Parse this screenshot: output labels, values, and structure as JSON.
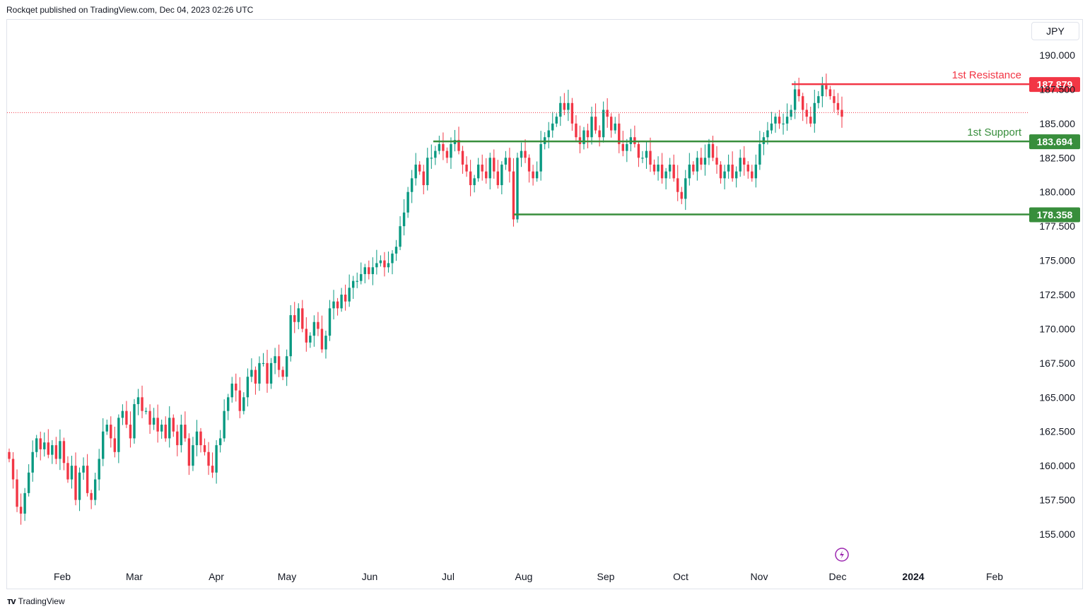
{
  "header": {
    "published": "Rockqet published on TradingView.com, Dec 04, 2023 02:26 UTC"
  },
  "currency": "JPY",
  "footer": {
    "brand": "TradingView"
  },
  "colors": {
    "up": "#089981",
    "down": "#f23645",
    "resistance": "#f23645",
    "support": "#388e3c",
    "grid_dotted": "#f23645"
  },
  "chart_data": {
    "type": "candlestick",
    "title": "",
    "xlabel": "",
    "ylabel": "",
    "ylim": [
      152.5,
      192.0
    ],
    "y_ticks": [
      "190.000",
      "187.500",
      "185.000",
      "182.500",
      "180.000",
      "177.500",
      "175.000",
      "172.500",
      "170.000",
      "167.500",
      "165.000",
      "162.500",
      "160.000",
      "157.500",
      "155.000"
    ],
    "x_ticks": [
      "Feb",
      "Mar",
      "Apr",
      "May",
      "Jun",
      "Jul",
      "Aug",
      "Sep",
      "Oct",
      "Nov",
      "Dec",
      "2024",
      "Feb"
    ],
    "x_ticks_bold": [
      "2024"
    ],
    "last_close": 185.8,
    "levels": [
      {
        "label": "1st Resistance",
        "value": 187.879,
        "value_text": "187.879",
        "color": "resistance"
      },
      {
        "label": "1st Support",
        "value": 183.694,
        "value_text": "183.694",
        "color": "support"
      },
      {
        "label": "",
        "value": 178.358,
        "value_text": "178.358",
        "color": "support"
      }
    ],
    "closes": [
      160.5,
      159.0,
      157.0,
      156.5,
      158.0,
      159.5,
      161.0,
      162.0,
      161.2,
      161.7,
      160.8,
      161.5,
      160.5,
      161.8,
      160.2,
      159.0,
      160.0,
      157.5,
      159.5,
      160.0,
      158.0,
      157.5,
      159.0,
      160.5,
      162.5,
      163.0,
      162.0,
      161.0,
      163.5,
      164.0,
      163.0,
      162.0,
      164.5,
      165.0,
      164.0,
      164.0,
      163.0,
      163.5,
      162.5,
      163.0,
      162.0,
      163.5,
      162.5,
      161.5,
      163.0,
      162.0,
      160.0,
      161.5,
      162.5,
      161.5,
      161.0,
      160.0,
      159.5,
      161.5,
      162.0,
      164.0,
      165.0,
      166.0,
      165.5,
      164.0,
      165.0,
      166.5,
      167.0,
      166.0,
      167.5,
      167.5,
      166.0,
      167.5,
      168.0,
      167.0,
      166.5,
      168.0,
      171.0,
      170.5,
      171.5,
      170.0,
      169.0,
      169.5,
      170.5,
      170.0,
      168.5,
      169.5,
      171.5,
      172.0,
      171.5,
      172.5,
      172.0,
      173.0,
      173.5,
      173.5,
      174.0,
      174.5,
      174.0,
      174.5,
      174.8,
      175.0,
      174.5,
      174.8,
      175.5,
      176.0,
      177.5,
      178.5,
      180.0,
      181.0,
      182.0,
      181.5,
      180.5,
      182.5,
      182.5,
      183.0,
      183.5,
      183.0,
      182.5,
      183.5,
      183.8,
      183.0,
      182.0,
      181.5,
      180.5,
      181.0,
      182.0,
      181.5,
      181.0,
      182.5,
      181.5,
      180.5,
      182.0,
      182.5,
      181.5,
      178.0,
      182.5,
      183.0,
      182.5,
      181.5,
      181.0,
      181.5,
      183.5,
      184.0,
      184.5,
      185.0,
      185.5,
      186.5,
      186.0,
      186.5,
      185.0,
      184.0,
      183.5,
      184.5,
      184.0,
      185.5,
      184.5,
      184.0,
      186.0,
      185.5,
      184.5,
      185.0,
      183.5,
      183.0,
      183.5,
      184.0,
      183.5,
      182.5,
      182.5,
      183.0,
      182.0,
      181.5,
      182.0,
      181.0,
      181.5,
      182.0,
      181.0,
      180.0,
      179.5,
      181.0,
      182.0,
      181.5,
      182.5,
      182.0,
      182.5,
      183.5,
      182.5,
      182.0,
      181.0,
      181.5,
      182.0,
      181.0,
      181.5,
      182.5,
      182.0,
      181.5,
      181.0,
      182.0,
      183.5,
      184.0,
      184.5,
      185.0,
      185.5,
      185.0,
      185.0,
      185.5,
      186.0,
      187.5,
      187.0,
      186.0,
      185.5,
      185.0,
      186.5,
      187.0,
      187.8,
      187.5,
      187.0,
      186.5,
      186.0,
      185.5
    ]
  }
}
